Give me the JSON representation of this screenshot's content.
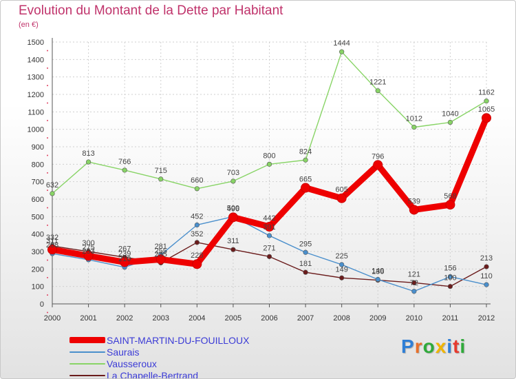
{
  "header": {
    "title": "Evolution du Montant de la Dette par Habitant",
    "subtitle": "(en €)"
  },
  "brand": {
    "letters": [
      "P",
      "r",
      "o",
      "x",
      "i",
      "t",
      "i"
    ],
    "colors": [
      "#2f7fd6",
      "#e8702a",
      "#2faa3a",
      "#f0b500",
      "#2f7fd6",
      "#e63a2e",
      "#2faa3a"
    ]
  },
  "chart_data": {
    "type": "line",
    "title": "Evolution du Montant de la Dette par Habitant",
    "subtitle": "(en €)",
    "xlabel": "",
    "ylabel": "",
    "ylim": [
      0,
      1500
    ],
    "y_ticks": [
      0,
      100,
      200,
      300,
      400,
      500,
      600,
      700,
      800,
      900,
      1000,
      1100,
      1200,
      1300,
      1400,
      1500
    ],
    "x": [
      "2000",
      "2001",
      "2002",
      "2003",
      "2004",
      "2005",
      "2006",
      "2007",
      "2008",
      "2009",
      "2010",
      "2011",
      "2012"
    ],
    "grid": true,
    "legend_position": "bottom-left",
    "series": [
      {
        "name": "La Chapelle-Bertrand",
        "color": "#6b1c1c",
        "values": [
          332,
          300,
          267,
          235,
          352,
          311,
          271,
          181,
          149,
          136,
          121,
          100,
          213
        ],
        "labels": [
          "332",
          "300",
          "267",
          "235",
          "352",
          "311",
          "271",
          "181",
          "149",
          "136",
          "121",
          "100",
          "213"
        ]
      },
      {
        "name": "Saurais",
        "color": "#4a8fcc",
        "values": [
          288,
          253,
          210,
          281,
          452,
          500,
          391,
          295,
          225,
          140,
          72,
          156,
          110
        ],
        "labels": [
          "288",
          "253",
          "210",
          "281",
          "452",
          "500",
          "391",
          "295",
          "225",
          "140",
          "72",
          "156",
          "110"
        ]
      },
      {
        "name": "Vausseroux",
        "color": "#88d466",
        "values": [
          632,
          813,
          766,
          715,
          660,
          703,
          800,
          824,
          1444,
          1221,
          1012,
          1040,
          1162
        ],
        "labels": [
          "632",
          "813",
          "766",
          "715",
          "660",
          "703",
          "800",
          "824",
          "1444",
          "1221",
          "1012",
          "1040",
          "1162"
        ]
      },
      {
        "name": "SAINT-MARTIN-DU-FOUILLOUX",
        "color": "#ee0000",
        "values": [
          311,
          275,
          239,
          255,
          228,
          496,
          442,
          665,
          605,
          796,
          539,
          568,
          1065
        ],
        "labels": [
          "311",
          "275",
          "239",
          "255",
          "228",
          "496",
          "442",
          "665",
          "605",
          "796",
          "539",
          "568",
          "1065"
        ]
      }
    ],
    "legend": [
      {
        "name": "SAINT-MARTIN-DU-FOUILLOUX",
        "color": "#ee0000",
        "thickness": 9
      },
      {
        "name": "Saurais",
        "color": "#4a8fcc",
        "thickness": 2
      },
      {
        "name": "Vausseroux",
        "color": "#88d466",
        "thickness": 2
      },
      {
        "name": "La Chapelle-Bertrand",
        "color": "#6b1c1c",
        "thickness": 2
      }
    ]
  }
}
